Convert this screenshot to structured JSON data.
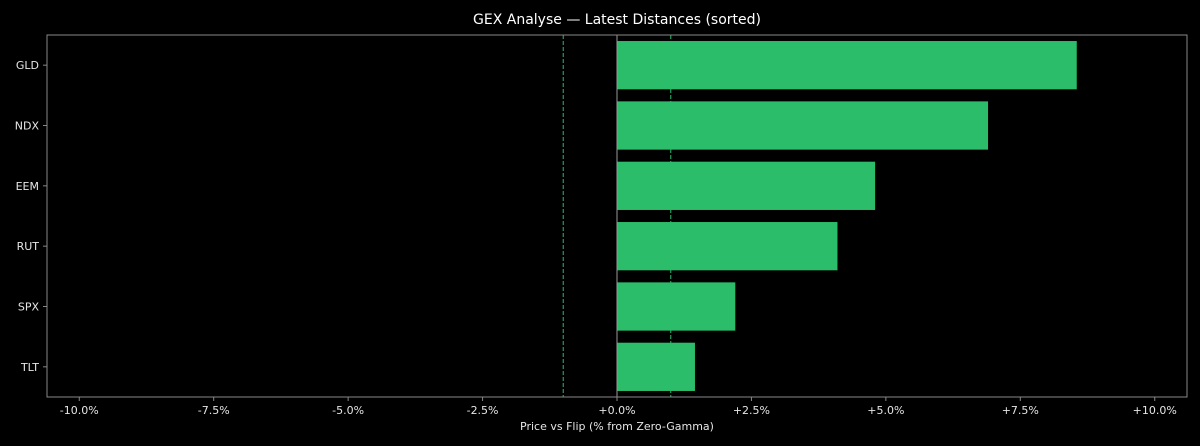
{
  "chart_data": {
    "type": "bar",
    "orientation": "horizontal",
    "title": "GEX Analyse — Latest Distances (sorted)",
    "xlabel": "Price vs Flip (% from Zero-Gamma)",
    "ylabel": "",
    "categories": [
      "GLD",
      "NDX",
      "EEM",
      "RUT",
      "SPX",
      "TLT"
    ],
    "values": [
      8.55,
      6.9,
      4.8,
      4.1,
      2.2,
      1.45
    ],
    "xlim": [
      -10.6,
      10.6
    ],
    "x_ticks": [
      -10,
      -7.5,
      -5,
      -2.5,
      0,
      2.5,
      5,
      7.5,
      10
    ],
    "x_tick_labels": [
      "-10.0%",
      "-7.5%",
      "-5.0%",
      "-2.5%",
      "+0.0%",
      "+2.5%",
      "+5.0%",
      "+7.5%",
      "+10.0%"
    ],
    "reference_lines": [
      -1,
      1
    ],
    "grid": false,
    "legend": "none",
    "colors": {
      "background": "#000000",
      "bar": "#2bbd6a",
      "reference_line": "#2bbd6a",
      "zero_line": "#999999",
      "axes": "#888888",
      "text": "#e6e6e6"
    }
  }
}
